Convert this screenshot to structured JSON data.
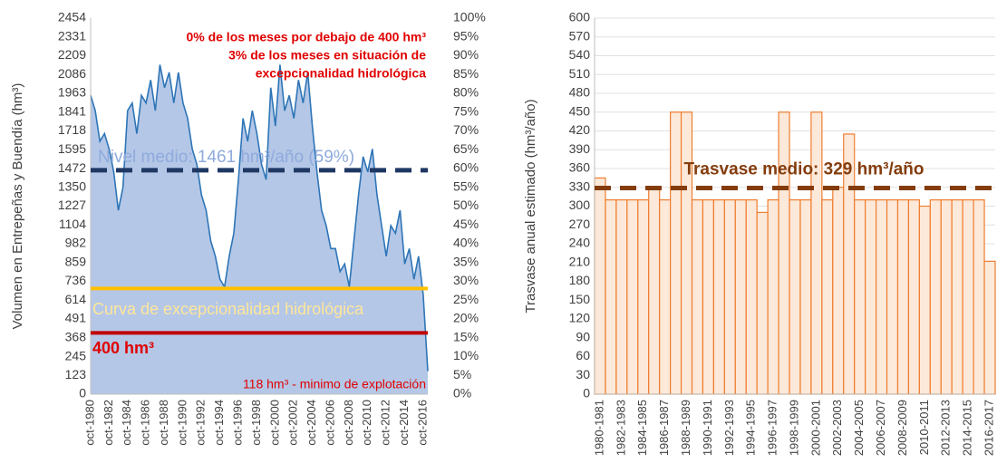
{
  "chart_data": [
    {
      "type": "area",
      "y_label": "Volumen en Entrepeñas y Buendía (hm³)",
      "color": "#2e75b6",
      "fill": "#b4c7e7",
      "categories": [
        "oct-1980",
        null,
        null,
        null,
        "oct-1982",
        null,
        null,
        null,
        "oct-1984",
        null,
        null,
        null,
        "oct-1986",
        null,
        null,
        null,
        "oct-1988",
        null,
        null,
        null,
        "oct-1990",
        null,
        null,
        null,
        "oct-1992",
        null,
        null,
        null,
        "oct-1994",
        null,
        null,
        null,
        "oct-1996",
        null,
        null,
        null,
        "oct-1998",
        null,
        null,
        null,
        "oct-2000",
        null,
        null,
        null,
        "oct-2002",
        null,
        null,
        null,
        "oct-2004",
        null,
        null,
        null,
        "oct-2006",
        null,
        null,
        null,
        "oct-2008",
        null,
        null,
        null,
        "oct-2010",
        null,
        null,
        null,
        "oct-2012",
        null,
        null,
        null,
        "oct-2014",
        null,
        null,
        null,
        "oct-2016",
        null
      ],
      "values": [
        1950,
        1850,
        1650,
        1700,
        1600,
        1450,
        1200,
        1350,
        1850,
        1900,
        1700,
        1950,
        1900,
        2050,
        1850,
        2150,
        2000,
        2100,
        1900,
        2100,
        1900,
        1800,
        1600,
        1500,
        1300,
        1200,
        1000,
        900,
        750,
        700,
        900,
        1050,
        1400,
        1800,
        1650,
        1850,
        1700,
        1500,
        1400,
        2000,
        1750,
        2150,
        1850,
        1950,
        1800,
        2050,
        1900,
        2100,
        1750,
        1450,
        1200,
        1100,
        950,
        950,
        800,
        850,
        700,
        1000,
        1300,
        1550,
        1450,
        1600,
        1300,
        1100,
        900,
        1100,
        1050,
        1200,
        850,
        950,
        750,
        900,
        650,
        150
      ],
      "ylim": [
        0,
        2454
      ],
      "yticks": [
        0,
        123,
        245,
        368,
        491,
        614,
        736,
        859,
        982,
        1104,
        1227,
        1350,
        1472,
        1595,
        1718,
        1841,
        1963,
        2086,
        2209,
        2331,
        2454
      ],
      "y2lim": [
        0,
        100
      ],
      "y2ticks": [
        {
          "value": 0,
          "label": "0%"
        },
        {
          "value": 5,
          "label": "5%"
        },
        {
          "value": 10,
          "label": "10%"
        },
        {
          "value": 15,
          "label": "15%"
        },
        {
          "value": 20,
          "label": "20%"
        },
        {
          "value": 25,
          "label": "25%"
        },
        {
          "value": 30,
          "label": "30%"
        },
        {
          "value": 35,
          "label": "35%"
        },
        {
          "value": 40,
          "label": "40%"
        },
        {
          "value": 45,
          "label": "45%"
        },
        {
          "value": 50,
          "label": "50%"
        },
        {
          "value": 55,
          "label": "55%"
        },
        {
          "value": 60,
          "label": "60%"
        },
        {
          "value": 65,
          "label": "65%"
        },
        {
          "value": 70,
          "label": "70%"
        },
        {
          "value": 75,
          "label": "75%"
        },
        {
          "value": 80,
          "label": "80%"
        },
        {
          "value": 85,
          "label": "85%"
        },
        {
          "value": 90,
          "label": "90%"
        },
        {
          "value": 95,
          "label": "95%"
        },
        {
          "value": 100,
          "label": "100%"
        }
      ],
      "reference_lines": [
        {
          "value": 1461,
          "label": "Nivel medio: 1461 hm³/año (59%)",
          "color": "#1f3864",
          "dashed": true
        },
        {
          "value": 690,
          "label": "Curva de excepcionalidad hidrológica",
          "color": "#ffc000",
          "dashed": false
        },
        {
          "value": 400,
          "label": "400 hm³",
          "color": "#c00000",
          "dashed": false
        }
      ],
      "annotations": [
        "0% de los meses por debajo de 400 hm³",
        "3% de los meses en situación de",
        "excepcionalidad hidrológica",
        "118 hm³ - minimo de explotación"
      ]
    },
    {
      "type": "bar",
      "y_label": "Trasvase anual estimado (hm³/año)",
      "color": "#ed7d31",
      "fill": "#fde9d9",
      "categories": [
        "1980-1981",
        null,
        "1982-1983",
        null,
        "1984-1985",
        null,
        "1986-1987",
        null,
        "1988-1989",
        null,
        "1990-1991",
        null,
        "1992-1993",
        null,
        "1994-1995",
        null,
        "1996-1997",
        null,
        "1998-1999",
        null,
        "2000-2001",
        null,
        "2002-2003",
        null,
        "2004-2005",
        null,
        "2006-2007",
        null,
        "2008-2009",
        null,
        "2010-2011",
        null,
        "2012-2013",
        null,
        "2014-2015",
        null,
        "2016-2017"
      ],
      "values": [
        345,
        310,
        310,
        310,
        310,
        330,
        310,
        450,
        450,
        310,
        310,
        310,
        310,
        310,
        310,
        290,
        310,
        450,
        310,
        310,
        450,
        310,
        330,
        415,
        310,
        310,
        310,
        310,
        310,
        310,
        300,
        310,
        310,
        310,
        310,
        310,
        212
      ],
      "ylim": [
        0,
        600
      ],
      "yticks": [
        0,
        30,
        60,
        90,
        120,
        150,
        180,
        210,
        240,
        270,
        300,
        330,
        360,
        390,
        420,
        450,
        480,
        510,
        540,
        570,
        600
      ],
      "reference_lines": [
        {
          "value": 329,
          "label": "Trasvase medio: 329 hm³/año",
          "color": "#843c0c",
          "dashed": true
        }
      ]
    }
  ]
}
